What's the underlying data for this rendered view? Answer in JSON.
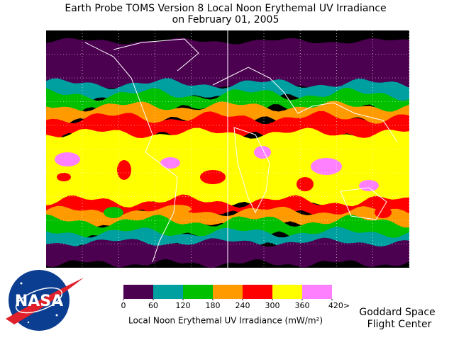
{
  "header": {
    "title": [
      "Earth Probe TOMS Version 8 Local Noon Erythemal UV Irradiance",
      "on February 01, 2005"
    ]
  },
  "legend": {
    "colors": [
      "#4b0050",
      "#00a0a0",
      "#00c000",
      "#ff9a00",
      "#ff0000",
      "#ffff00",
      "#ff80ff"
    ],
    "ticks": [
      0,
      60,
      120,
      180,
      240,
      300,
      360,
      {
        "value": 420,
        "label": "420>"
      }
    ],
    "label": "Local Noon Erythemal UV Irradiance (mW/m²)"
  },
  "logo": {
    "text": "NASA"
  },
  "credit": [
    "Goddard Space",
    "Flight Center"
  ]
}
